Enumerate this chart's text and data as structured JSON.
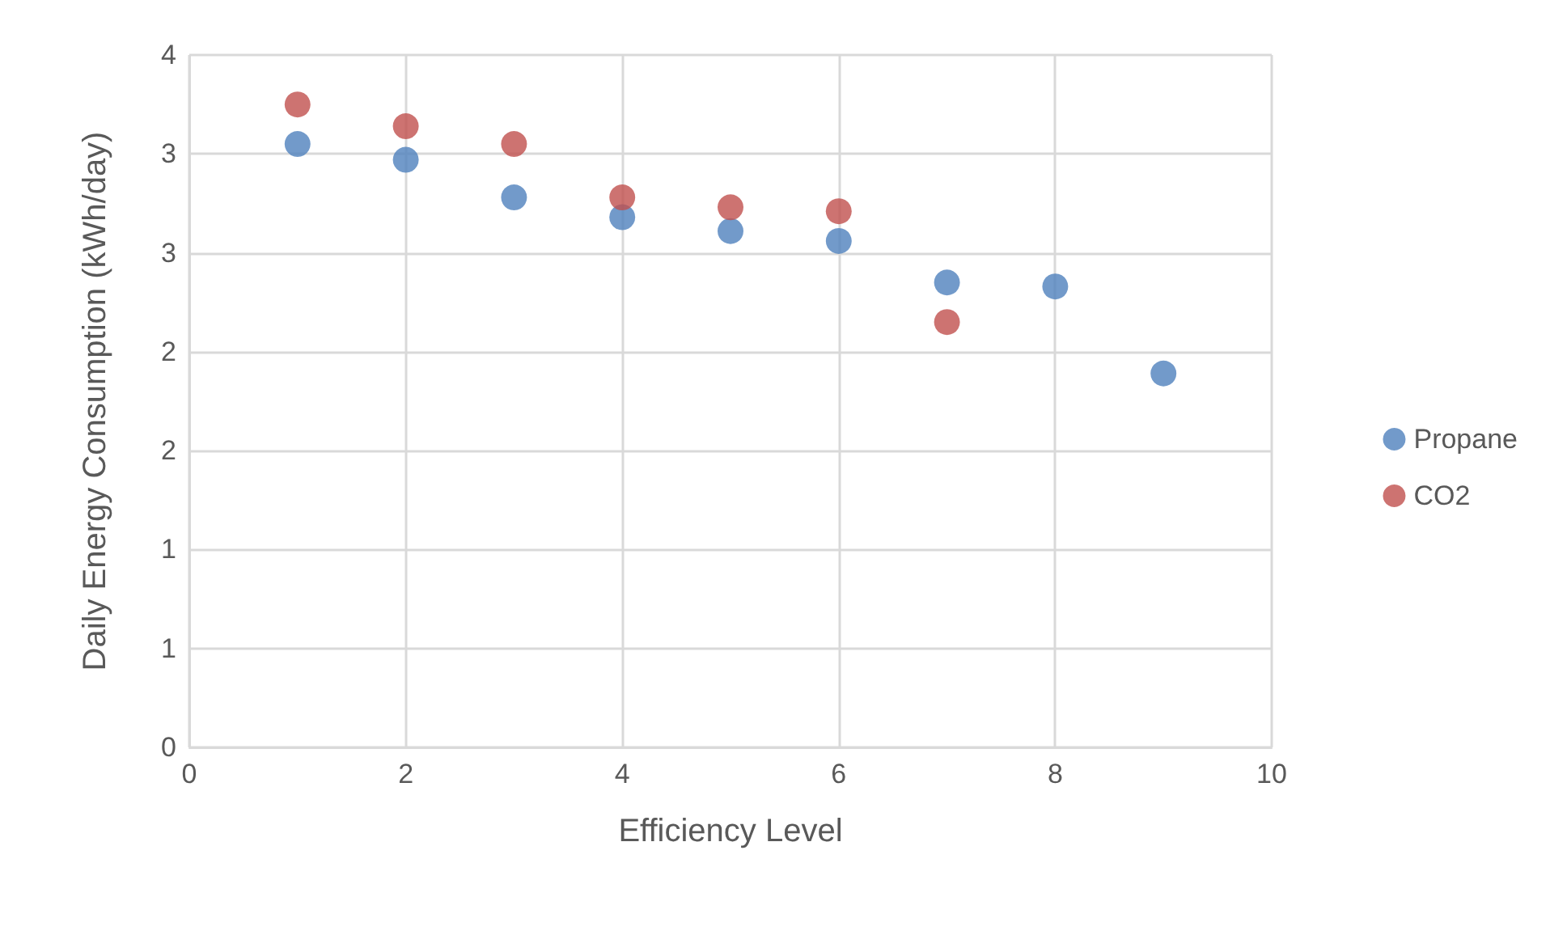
{
  "chart_data": {
    "type": "scatter",
    "xlabel": "Efficiency Level",
    "ylabel": "Daily Energy Consumption (kWh/day)",
    "series": [
      {
        "name": "Propane",
        "color": "#4f81bd",
        "x": [
          1,
          2,
          3,
          4,
          5,
          6,
          7,
          8,
          9
        ],
        "values": [
          3.05,
          2.97,
          2.78,
          2.68,
          2.61,
          2.56,
          2.35,
          2.33,
          1.89
        ]
      },
      {
        "name": "CO2",
        "color": "#c0504d",
        "x": [
          1,
          2,
          3,
          4,
          5,
          6,
          7
        ],
        "values": [
          3.25,
          3.14,
          3.05,
          2.78,
          2.73,
          2.71,
          2.15
        ]
      }
    ],
    "xlim": [
      0,
      10
    ],
    "xticks": [
      0,
      2,
      4,
      6,
      8,
      10
    ],
    "ylim": [
      0,
      3.5
    ],
    "yticks": [
      0,
      {
        "value": 0.5,
        "label": "1"
      },
      1,
      {
        "value": 1.5,
        "label": "2"
      },
      2,
      {
        "value": 2.5,
        "label": "3"
      },
      3,
      {
        "value": 3.5,
        "label": "4"
      }
    ],
    "grid": true,
    "legend": "right",
    "marker": "circle"
  }
}
